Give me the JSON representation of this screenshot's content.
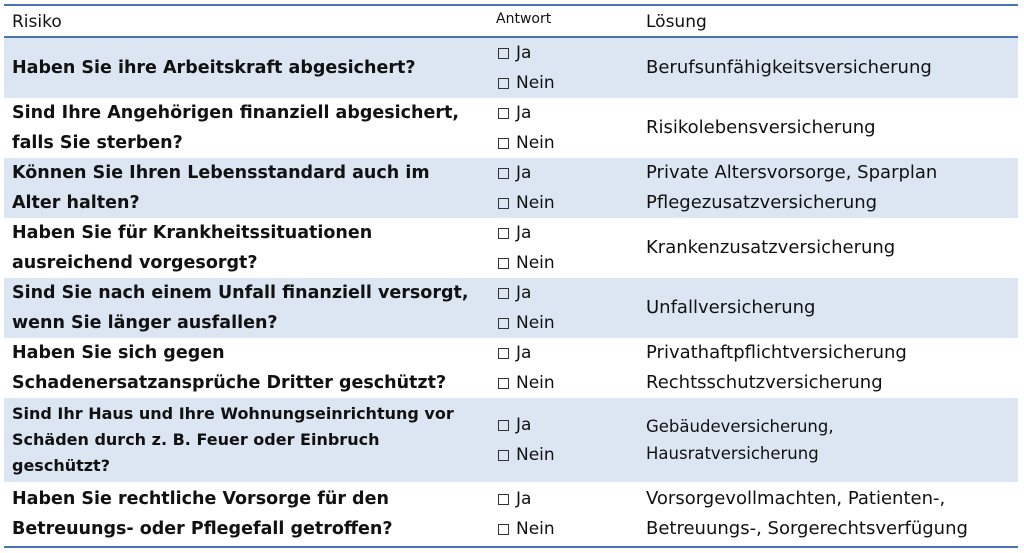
{
  "header": {
    "risk": "Risiko",
    "answer": "Antwort",
    "solution": "Lösung"
  },
  "options": {
    "yes": "Ja",
    "no": "Nein"
  },
  "rows": [
    {
      "question": "Haben Sie ihre Arbeitskraft abgesichert?",
      "solution": "Berufsunfähigkeitsversicherung"
    },
    {
      "question": "Sind Ihre Angehörigen finanziell abgesichert,\nfalls Sie sterben?",
      "solution": "Risikolebensversicherung"
    },
    {
      "question": "Können Sie Ihren Lebensstandard auch im\nAlter halten?",
      "solution": "Private Altersvorsorge, Sparplan\nPflegezusatzversicherung"
    },
    {
      "question": "Haben Sie für Krankheitssituationen\nausreichend vorgesorgt?",
      "solution": "Krankenzusatzversicherung"
    },
    {
      "question": "Sind Sie nach einem Unfall finanziell versorgt,\nwenn Sie länger ausfallen?",
      "solution": "Unfallversicherung"
    },
    {
      "question": "Haben Sie sich gegen\nSchadenersatzansprüche Dritter geschützt?",
      "solution": "Privathaftpflichtversicherung\nRechtsschutzversicherung"
    },
    {
      "question": "Sind Ihr Haus und Ihre Wohnungseinrichtung vor\nSchäden durch z. B. Feuer oder Einbruch\ngeschützt?",
      "solution": "Gebäudeversicherung,\nHausratversicherung"
    },
    {
      "question": "Haben Sie rechtliche Vorsorge für den\nBetreuungs- oder Pflegefall getroffen?",
      "solution": "Vorsorgevollmachten, Patienten-,\nBetreuungs-, Sorgerechtsverfügung"
    }
  ]
}
